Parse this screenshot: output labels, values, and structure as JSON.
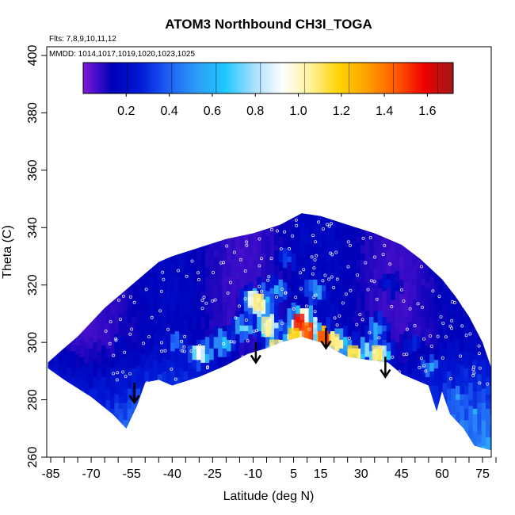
{
  "chart_data": {
    "type": "heatmap",
    "title": "ATOM3 Northbound CH3I_TOGA",
    "flights_label": "Flts: 7,8,9,10,11,12",
    "dates_label": "MMDD: 1014,1017,1019,1020,1023,1025",
    "xlabel": "Latitude (deg N)",
    "ylabel": "Theta (C)",
    "xlim": [
      -87,
      82
    ],
    "ylim": [
      260,
      402
    ],
    "x_ticks": [
      -85,
      -70,
      -55,
      -40,
      -25,
      -10,
      5,
      15,
      30,
      45,
      60,
      75
    ],
    "x_tick_labels": [
      "-85",
      "-70",
      "-55",
      "-40",
      "-25",
      "-10",
      "5",
      "15",
      "30",
      "45",
      "60",
      "75"
    ],
    "y_ticks": [
      260,
      280,
      300,
      320,
      340,
      360,
      380,
      400
    ],
    "y_tick_labels": [
      "260",
      "280",
      "300",
      "320",
      "340",
      "360",
      "380",
      "400"
    ],
    "colorbar": {
      "range": [
        0.0,
        1.72
      ],
      "ticks": [
        0.2,
        0.4,
        0.6,
        0.8,
        1.0,
        1.2,
        1.4,
        1.6
      ],
      "tick_labels": [
        "0.2",
        "0.4",
        "0.6",
        "0.8",
        "1.0",
        "1.2",
        "1.4",
        "1.6"
      ],
      "colors": [
        "#7f1bd9",
        "#0000b8",
        "#0019d6",
        "#1e5ff5",
        "#2d9df7",
        "#20c8ff",
        "#a8deff",
        "#ffffff",
        "#fff29a",
        "#ffd400",
        "#ff9e00",
        "#ff5a00",
        "#ee0000",
        "#a01818"
      ]
    },
    "upper_boundary": [
      [
        -86,
        293
      ],
      [
        -80,
        298
      ],
      [
        -75,
        302
      ],
      [
        -70,
        307
      ],
      [
        -65,
        312
      ],
      [
        -60,
        316
      ],
      [
        -55,
        320
      ],
      [
        -50,
        324
      ],
      [
        -45,
        328
      ],
      [
        -40,
        330
      ],
      [
        -30,
        333
      ],
      [
        -20,
        336
      ],
      [
        -10,
        338
      ],
      [
        0,
        341
      ],
      [
        8,
        345
      ],
      [
        15,
        344
      ],
      [
        25,
        341
      ],
      [
        35,
        338
      ],
      [
        45,
        334
      ],
      [
        52,
        329
      ],
      [
        60,
        322
      ],
      [
        65,
        316
      ],
      [
        70,
        309
      ],
      [
        75,
        300
      ],
      [
        79,
        289
      ],
      [
        80,
        280
      ],
      [
        80,
        262
      ]
    ],
    "lower_boundary": [
      [
        -86,
        291
      ],
      [
        -80,
        287
      ],
      [
        -70,
        281
      ],
      [
        -62,
        275
      ],
      [
        -57,
        270
      ],
      [
        -53,
        278
      ],
      [
        -50,
        286
      ],
      [
        -45,
        287
      ],
      [
        -40,
        285
      ],
      [
        -30,
        288
      ],
      [
        -20,
        292
      ],
      [
        -12,
        296
      ],
      [
        -5,
        298
      ],
      [
        0,
        300
      ],
      [
        8,
        302
      ],
      [
        15,
        300
      ],
      [
        25,
        295
      ],
      [
        32,
        294
      ],
      [
        40,
        293
      ],
      [
        45,
        289
      ],
      [
        50,
        287
      ],
      [
        55,
        285
      ],
      [
        58,
        276
      ],
      [
        60,
        283
      ],
      [
        63,
        275
      ],
      [
        68,
        270
      ],
      [
        72,
        264
      ],
      [
        80,
        262
      ]
    ],
    "features": [
      {
        "lat": -5,
        "theta": 306,
        "value": 1.05
      },
      {
        "lat": -2,
        "theta": 298,
        "value": 1.1
      },
      {
        "lat": 7,
        "theta": 307,
        "value": 1.6
      },
      {
        "lat": 10,
        "theta": 304,
        "value": 1.45
      },
      {
        "lat": 5,
        "theta": 302,
        "value": 1.2
      },
      {
        "lat": 16,
        "theta": 301,
        "value": 1.5
      },
      {
        "lat": 20,
        "theta": 300,
        "value": 1.1
      },
      {
        "lat": 27,
        "theta": 296,
        "value": 1.15
      },
      {
        "lat": 36,
        "theta": 296,
        "value": 1.1
      },
      {
        "lat": -10,
        "theta": 315,
        "value": 0.95
      },
      {
        "lat": -8,
        "theta": 314,
        "value": 1.1
      },
      {
        "lat": -30,
        "theta": 296,
        "value": 0.9
      },
      {
        "lat": -22,
        "theta": 300,
        "value": 0.75
      },
      {
        "lat": -14,
        "theta": 305,
        "value": 0.7
      },
      {
        "lat": 35,
        "theta": 305,
        "value": 0.6
      },
      {
        "lat": 30,
        "theta": 296,
        "value": 0.85
      },
      {
        "lat": 65,
        "theta": 282,
        "value": 0.55
      },
      {
        "lat": 72,
        "theta": 275,
        "value": 0.55
      },
      {
        "lat": 55,
        "theta": 292,
        "value": 0.5
      },
      {
        "lat": -2,
        "theta": 318,
        "value": 0.55
      },
      {
        "lat": 12,
        "theta": 318,
        "value": 0.6
      },
      {
        "lat": -40,
        "theta": 300,
        "value": 0.45
      },
      {
        "lat": 2,
        "theta": 330,
        "value": 0.35
      },
      {
        "lat": 40,
        "theta": 320,
        "value": 0.25
      },
      {
        "lat": -60,
        "theta": 300,
        "value": 0.18
      },
      {
        "lat": -72,
        "theta": 288,
        "value": 0.2
      },
      {
        "lat": 48,
        "theta": 300,
        "value": 0.3
      }
    ],
    "arrows": [
      {
        "lat": -54,
        "theta_top": 286,
        "theta_tip": 279
      },
      {
        "lat": -9,
        "theta_top": 300,
        "theta_tip": 293
      },
      {
        "lat": 17,
        "theta_top": 305,
        "theta_tip": 298
      },
      {
        "lat": 39,
        "theta_top": 295,
        "theta_tip": 288
      }
    ]
  }
}
